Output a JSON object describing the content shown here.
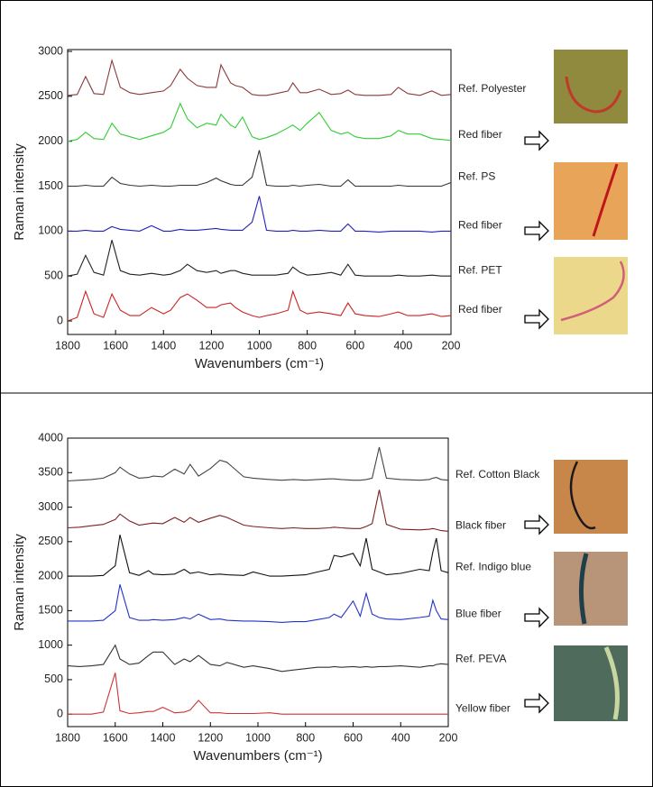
{
  "chart_data": [
    {
      "type": "line",
      "ylabel": "Raman intensity",
      "xlabel": "Wavenumbers (cm⁻¹)",
      "xlim": [
        1800,
        200
      ],
      "xticks": [
        1800,
        1600,
        1400,
        1200,
        1000,
        800,
        600,
        400,
        200
      ],
      "ylim": [
        -150,
        3020
      ],
      "yticks": [
        0,
        500,
        1000,
        1500,
        2000,
        2500,
        3000
      ],
      "x": [
        1800,
        1760,
        1725,
        1690,
        1650,
        1615,
        1580,
        1540,
        1500,
        1450,
        1400,
        1370,
        1330,
        1300,
        1260,
        1220,
        1180,
        1160,
        1120,
        1100,
        1070,
        1030,
        1000,
        970,
        930,
        880,
        860,
        830,
        800,
        750,
        700,
        660,
        630,
        600,
        560,
        500,
        450,
        420,
        380,
        330,
        280,
        240,
        200
      ],
      "series": [
        {
          "name": "Ref. Polyester",
          "color": "#8b3a3a",
          "values": [
            2510,
            2520,
            2720,
            2530,
            2520,
            2900,
            2600,
            2540,
            2520,
            2540,
            2560,
            2620,
            2800,
            2700,
            2620,
            2600,
            2600,
            2850,
            2650,
            2620,
            2600,
            2520,
            2510,
            2510,
            2530,
            2560,
            2650,
            2540,
            2540,
            2580,
            2520,
            2530,
            2570,
            2520,
            2510,
            2510,
            2520,
            2600,
            2530,
            2510,
            2560,
            2510,
            2520
          ]
        },
        {
          "name": "Red fiber",
          "color": "#33cc33",
          "values": [
            2000,
            2020,
            2100,
            2030,
            2020,
            2200,
            2080,
            2050,
            2020,
            2060,
            2100,
            2150,
            2420,
            2250,
            2150,
            2200,
            2180,
            2300,
            2180,
            2150,
            2270,
            2050,
            2020,
            2040,
            2080,
            2150,
            2180,
            2120,
            2200,
            2320,
            2120,
            2080,
            2100,
            2050,
            2030,
            2030,
            2060,
            2120,
            2080,
            2080,
            2030,
            2020,
            2010
          ]
        },
        {
          "name": "Ref. PS",
          "color": "#333333",
          "values": [
            1500,
            1500,
            1510,
            1500,
            1500,
            1600,
            1530,
            1510,
            1500,
            1510,
            1500,
            1500,
            1510,
            1510,
            1510,
            1540,
            1590,
            1560,
            1520,
            1510,
            1510,
            1600,
            1900,
            1510,
            1500,
            1500,
            1510,
            1500,
            1510,
            1520,
            1500,
            1500,
            1570,
            1500,
            1500,
            1500,
            1500,
            1510,
            1500,
            1500,
            1500,
            1500,
            1540
          ]
        },
        {
          "name": "Red fiber",
          "color": "#2222bb",
          "values": [
            1000,
            1000,
            1010,
            1000,
            1000,
            1050,
            1020,
            1010,
            1000,
            1060,
            1000,
            1000,
            1020,
            1010,
            1010,
            1020,
            1030,
            1020,
            1010,
            1010,
            1010,
            1100,
            1390,
            1010,
            1000,
            1000,
            1010,
            1000,
            1000,
            1010,
            1000,
            1000,
            1080,
            1000,
            1000,
            990,
            1000,
            1000,
            1000,
            1000,
            990,
            1000,
            1000
          ]
        },
        {
          "name": "Ref. PET",
          "color": "#222222",
          "values": [
            500,
            520,
            730,
            540,
            510,
            900,
            560,
            520,
            510,
            530,
            510,
            520,
            560,
            630,
            560,
            540,
            560,
            530,
            560,
            560,
            530,
            510,
            510,
            510,
            510,
            530,
            600,
            540,
            510,
            520,
            540,
            510,
            630,
            510,
            500,
            500,
            500,
            510,
            500,
            500,
            510,
            500,
            500
          ]
        },
        {
          "name": "Red fiber",
          "color": "#cc2222",
          "values": [
            0,
            40,
            330,
            80,
            40,
            300,
            120,
            60,
            60,
            150,
            80,
            120,
            260,
            300,
            230,
            150,
            150,
            180,
            200,
            150,
            100,
            60,
            40,
            60,
            80,
            120,
            330,
            120,
            80,
            100,
            80,
            60,
            200,
            80,
            60,
            50,
            80,
            100,
            60,
            60,
            80,
            50,
            60
          ]
        }
      ]
    },
    {
      "type": "line",
      "ylabel": "Raman intensity",
      "xlabel": "Wavenumbers (cm⁻¹)",
      "xlim": [
        1800,
        200
      ],
      "xticks": [
        1800,
        1600,
        1400,
        1200,
        1000,
        800,
        600,
        400,
        200
      ],
      "ylim": [
        -180,
        4000
      ],
      "yticks": [
        0,
        500,
        1000,
        1500,
        2000,
        2500,
        3000,
        3500,
        4000
      ],
      "x": [
        1800,
        1750,
        1700,
        1650,
        1600,
        1580,
        1540,
        1500,
        1460,
        1440,
        1400,
        1350,
        1310,
        1285,
        1250,
        1200,
        1160,
        1130,
        1060,
        1020,
        950,
        900,
        850,
        800,
        750,
        700,
        680,
        650,
        600,
        570,
        545,
        520,
        490,
        460,
        400,
        320,
        280,
        265,
        250,
        230,
        200
      ],
      "series": [
        {
          "name": "Ref. Cotton Black",
          "color": "#444444",
          "values": [
            3380,
            3390,
            3400,
            3420,
            3500,
            3580,
            3480,
            3420,
            3430,
            3450,
            3440,
            3550,
            3480,
            3620,
            3450,
            3560,
            3680,
            3650,
            3440,
            3420,
            3400,
            3390,
            3400,
            3390,
            3400,
            3410,
            3410,
            3400,
            3390,
            3390,
            3400,
            3420,
            3870,
            3420,
            3400,
            3390,
            3400,
            3420,
            3430,
            3400,
            3390
          ]
        },
        {
          "name": "Black fiber",
          "color": "#7a2020",
          "values": [
            2700,
            2710,
            2730,
            2750,
            2820,
            2900,
            2800,
            2740,
            2760,
            2770,
            2760,
            2850,
            2780,
            2850,
            2780,
            2840,
            2880,
            2850,
            2740,
            2720,
            2700,
            2690,
            2700,
            2690,
            2690,
            2700,
            2710,
            2700,
            2690,
            2690,
            2720,
            2760,
            3250,
            2750,
            2680,
            2670,
            2680,
            2690,
            2680,
            2660,
            2650
          ]
        },
        {
          "name": "Ref. Indigo blue",
          "color": "#111111",
          "values": [
            2000,
            2000,
            2000,
            2010,
            2150,
            2600,
            2050,
            2010,
            2080,
            2030,
            2020,
            2030,
            2100,
            2040,
            2060,
            2020,
            2030,
            2020,
            2010,
            2060,
            2000,
            2000,
            2010,
            2020,
            2060,
            2100,
            2300,
            2280,
            2330,
            2150,
            2550,
            2100,
            2060,
            2020,
            2040,
            2100,
            2080,
            2350,
            2550,
            2080,
            2050
          ]
        },
        {
          "name": "Blue fiber",
          "color": "#2233cc",
          "values": [
            1350,
            1350,
            1350,
            1360,
            1500,
            1880,
            1400,
            1360,
            1360,
            1370,
            1360,
            1370,
            1400,
            1380,
            1450,
            1370,
            1380,
            1360,
            1350,
            1350,
            1340,
            1330,
            1340,
            1340,
            1370,
            1400,
            1450,
            1400,
            1640,
            1420,
            1750,
            1450,
            1400,
            1380,
            1370,
            1400,
            1420,
            1650,
            1500,
            1380,
            1370
          ]
        },
        {
          "name": "Ref. PEVA",
          "color": "#333333",
          "values": [
            700,
            690,
            700,
            720,
            1000,
            800,
            720,
            740,
            850,
            900,
            900,
            720,
            800,
            760,
            850,
            720,
            700,
            750,
            680,
            700,
            660,
            620,
            640,
            660,
            680,
            680,
            690,
            680,
            690,
            680,
            690,
            680,
            690,
            690,
            700,
            680,
            700,
            700,
            720,
            730,
            720
          ]
        },
        {
          "name": "Yellow fiber",
          "color": "#cc3333",
          "values": [
            0,
            0,
            0,
            30,
            600,
            50,
            10,
            20,
            40,
            40,
            100,
            20,
            30,
            60,
            200,
            20,
            20,
            10,
            10,
            10,
            20,
            0,
            0,
            0,
            0,
            0,
            0,
            0,
            0,
            0,
            0,
            0,
            0,
            0,
            0,
            0,
            0,
            0,
            0,
            0,
            0
          ]
        }
      ]
    }
  ]
}
